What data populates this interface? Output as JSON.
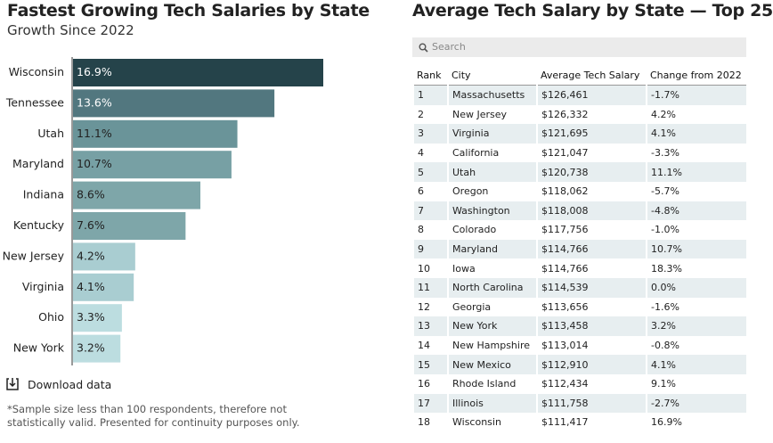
{
  "chart_data": {
    "type": "bar",
    "orientation": "horizontal",
    "title": "Fastest Growing Tech Salaries by State",
    "subtitle": "Growth Since 2022",
    "categories": [
      "Wisconsin",
      "Tennessee",
      "Utah",
      "Maryland",
      "Indiana",
      "Kentucky",
      "New Jersey",
      "Virginia",
      "Ohio",
      "New York"
    ],
    "values": [
      16.9,
      13.6,
      11.1,
      10.7,
      8.6,
      7.6,
      4.2,
      4.1,
      3.3,
      3.2
    ],
    "value_labels": [
      "16.9%",
      "13.6%",
      "11.1%",
      "10.7%",
      "8.6%",
      "7.6%",
      "4.2%",
      "4.1%",
      "3.3%",
      "3.2%"
    ],
    "colors": [
      "#25434a",
      "#52777f",
      "#6a9499",
      "#77a0a4",
      "#7ea6a9",
      "#7ea6a9",
      "#a9cdd1",
      "#a9cdd1",
      "#bcdde0",
      "#bcdde0"
    ]
  },
  "download": "Download data",
  "footnote": "*Sample size less than 100 respondents, therefore not statistically valid. Presented for continuity purposes only.",
  "table": {
    "title": "Average Tech Salary by State — Top 25",
    "search_placeholder": "Search",
    "columns": [
      "Rank",
      "City",
      "Average Tech Salary",
      "Change from 2022"
    ],
    "rows": [
      [
        "1",
        "Massachusetts",
        "$126,461",
        "-1.7%"
      ],
      [
        "2",
        "New Jersey",
        "$126,332",
        "4.2%"
      ],
      [
        "3",
        "Virginia",
        "$121,695",
        "4.1%"
      ],
      [
        "4",
        "California",
        "$121,047",
        "-3.3%"
      ],
      [
        "5",
        "Utah",
        "$120,738",
        "11.1%"
      ],
      [
        "6",
        "Oregon",
        "$118,062",
        "-5.7%"
      ],
      [
        "7",
        "Washington",
        "$118,008",
        "-4.8%"
      ],
      [
        "8",
        "Colorado",
        "$117,756",
        "-1.0%"
      ],
      [
        "9",
        "Maryland",
        "$114,766",
        "10.7%"
      ],
      [
        "10",
        "Iowa",
        "$114,766",
        "18.3%"
      ],
      [
        "11",
        "North Carolina",
        "$114,539",
        "0.0%"
      ],
      [
        "12",
        "Georgia",
        "$113,656",
        "-1.6%"
      ],
      [
        "13",
        "New York",
        "$113,458",
        "3.2%"
      ],
      [
        "14",
        "New Hampshire",
        "$113,014",
        "-0.8%"
      ],
      [
        "15",
        "New Mexico",
        "$112,910",
        "4.1%"
      ],
      [
        "16",
        "Rhode Island",
        "$112,434",
        "9.1%"
      ],
      [
        "17",
        "Illinois",
        "$111,758",
        "-2.7%"
      ],
      [
        "18",
        "Wisconsin",
        "$111,417",
        "16.9%"
      ]
    ]
  }
}
